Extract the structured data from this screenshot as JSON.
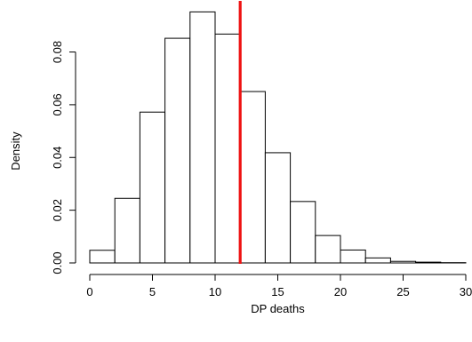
{
  "chart_data": {
    "type": "bar",
    "title": "",
    "xlabel": "DP deaths",
    "ylabel": "Density",
    "bin_edges": [
      0,
      2,
      4,
      6,
      8,
      10,
      12,
      14,
      16,
      18,
      20,
      22,
      24,
      26,
      28,
      30
    ],
    "values": [
      0.0048,
      0.0245,
      0.0572,
      0.0852,
      0.0952,
      0.0868,
      0.065,
      0.0418,
      0.0233,
      0.0104,
      0.0049,
      0.0019,
      0.0006,
      0.0003,
      0.0001
    ],
    "xlim": [
      0,
      30
    ],
    "ylim": [
      0,
      0.095
    ],
    "x_ticks": [
      0,
      5,
      10,
      15,
      20,
      25,
      30
    ],
    "x_tick_labels": [
      "0",
      "5",
      "10",
      "15",
      "20",
      "25",
      "30"
    ],
    "y_ticks": [
      0,
      0.02,
      0.04,
      0.06,
      0.08
    ],
    "y_tick_labels": [
      "0.00",
      "0.02",
      "0.04",
      "0.06",
      "0.08"
    ],
    "reference_line": {
      "x": 12,
      "color": "#ee1111"
    },
    "bar_fill": "#ffffff",
    "bar_stroke": "#000000",
    "grid": false,
    "legend": "none"
  }
}
